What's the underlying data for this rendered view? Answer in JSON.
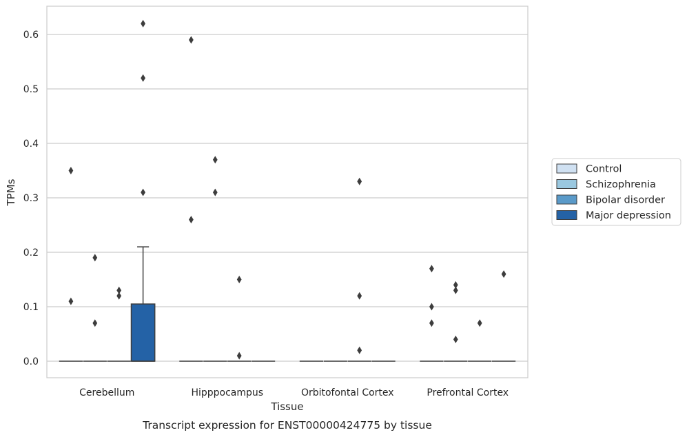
{
  "chart_data": {
    "type": "box",
    "caption": "Transcript expression for ENST00000424775 by tissue",
    "xlabel": "Tissue",
    "ylabel": "TPMs",
    "ylim": [
      -0.03,
      0.65
    ],
    "yticks": [
      0.0,
      0.1,
      0.2,
      0.3,
      0.4,
      0.5,
      0.6
    ],
    "ytick_labels": [
      "0.0",
      "0.1",
      "0.2",
      "0.3",
      "0.4",
      "0.5",
      "0.6"
    ],
    "grid": "horizontal",
    "legend_position": "right",
    "categories": [
      "Cerebellum",
      "Hipppocampus",
      "Orbitofontal Cortex",
      "Prefrontal Cortex"
    ],
    "series": [
      {
        "name": "Control",
        "color": "#d0e1f2",
        "boxes": [
          {
            "category": "Cerebellum",
            "q1": 0,
            "median": 0,
            "q3": 0,
            "whisker_low": 0,
            "whisker_high": 0,
            "outliers": [
              0.35,
              0.11
            ]
          },
          {
            "category": "Hipppocampus",
            "q1": 0,
            "median": 0,
            "q3": 0,
            "whisker_low": 0,
            "whisker_high": 0,
            "outliers": [
              0.59,
              0.26
            ]
          },
          {
            "category": "Orbitofontal Cortex",
            "q1": 0,
            "median": 0,
            "q3": 0,
            "whisker_low": 0,
            "whisker_high": 0,
            "outliers": []
          },
          {
            "category": "Prefrontal Cortex",
            "q1": 0,
            "median": 0,
            "q3": 0,
            "whisker_low": 0,
            "whisker_high": 0,
            "outliers": [
              0.17,
              0.1,
              0.07
            ]
          }
        ]
      },
      {
        "name": "Schizophrenia",
        "color": "#9ac8e0",
        "boxes": [
          {
            "category": "Cerebellum",
            "q1": 0,
            "median": 0,
            "q3": 0,
            "whisker_low": 0,
            "whisker_high": 0,
            "outliers": [
              0.19,
              0.07
            ]
          },
          {
            "category": "Hipppocampus",
            "q1": 0,
            "median": 0,
            "q3": 0,
            "whisker_low": 0,
            "whisker_high": 0,
            "outliers": [
              0.37,
              0.31
            ]
          },
          {
            "category": "Orbitofontal Cortex",
            "q1": 0,
            "median": 0,
            "q3": 0,
            "whisker_low": 0,
            "whisker_high": 0,
            "outliers": []
          },
          {
            "category": "Prefrontal Cortex",
            "q1": 0,
            "median": 0,
            "q3": 0,
            "whisker_low": 0,
            "whisker_high": 0,
            "outliers": [
              0.14,
              0.13,
              0.04
            ]
          }
        ]
      },
      {
        "name": "Bipolar disorder",
        "color": "#5a9ac9",
        "boxes": [
          {
            "category": "Cerebellum",
            "q1": 0,
            "median": 0,
            "q3": 0,
            "whisker_low": 0,
            "whisker_high": 0,
            "outliers": [
              0.13,
              0.12
            ]
          },
          {
            "category": "Hipppocampus",
            "q1": 0,
            "median": 0,
            "q3": 0,
            "whisker_low": 0,
            "whisker_high": 0,
            "outliers": [
              0.15,
              0.01
            ]
          },
          {
            "category": "Orbitofontal Cortex",
            "q1": 0,
            "median": 0,
            "q3": 0,
            "whisker_low": 0,
            "whisker_high": 0,
            "outliers": [
              0.33,
              0.12,
              0.02
            ]
          },
          {
            "category": "Prefrontal Cortex",
            "q1": 0,
            "median": 0,
            "q3": 0,
            "whisker_low": 0,
            "whisker_high": 0,
            "outliers": [
              0.07
            ]
          }
        ]
      },
      {
        "name": "Major depression",
        "color": "#2462a6",
        "boxes": [
          {
            "category": "Cerebellum",
            "q1": 0,
            "median": 0,
            "q3": 0.105,
            "whisker_low": 0,
            "whisker_high": 0.21,
            "outliers": [
              0.62,
              0.52,
              0.31
            ]
          },
          {
            "category": "Hipppocampus",
            "q1": 0,
            "median": 0,
            "q3": 0,
            "whisker_low": 0,
            "whisker_high": 0,
            "outliers": []
          },
          {
            "category": "Orbitofontal Cortex",
            "q1": 0,
            "median": 0,
            "q3": 0,
            "whisker_low": 0,
            "whisker_high": 0,
            "outliers": []
          },
          {
            "category": "Prefrontal Cortex",
            "q1": 0,
            "median": 0,
            "q3": 0,
            "whisker_low": 0,
            "whisker_high": 0,
            "outliers": [
              0.16
            ]
          }
        ]
      }
    ]
  }
}
